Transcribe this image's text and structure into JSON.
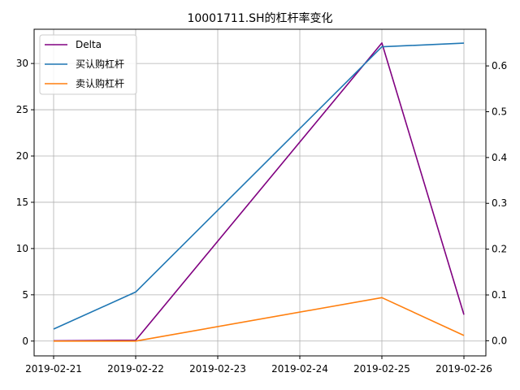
{
  "chart_data": {
    "type": "line",
    "title": "10001711.SH的杠杆率变化",
    "x": [
      "2019-02-21",
      "2019-02-22",
      "2019-02-23",
      "2019-02-24",
      "2019-02-25",
      "2019-02-26"
    ],
    "xlabel": "",
    "ylabel_left": "",
    "ylabel_right": "",
    "ylim_left": [
      -1.6,
      33.7
    ],
    "yticks_left": [
      0,
      5,
      10,
      15,
      20,
      25,
      30
    ],
    "ylim_right": [
      -0.033,
      0.68
    ],
    "yticks_right": [
      0.0,
      0.1,
      0.2,
      0.3,
      0.4,
      0.5,
      0.6
    ],
    "grid": true,
    "legend_position": "top-left",
    "series": [
      {
        "name": "Delta",
        "axis": "right",
        "color": "#800080",
        "points": [
          {
            "x": "2019-02-21",
            "y": 0.0
          },
          {
            "x": "2019-02-22",
            "y": 0.001
          },
          {
            "x": "2019-02-25",
            "y": 0.65
          },
          {
            "x": "2019-02-26",
            "y": 0.057
          }
        ]
      },
      {
        "name": "买认购杠杆",
        "axis": "left",
        "color": "#1f77b4",
        "points": [
          {
            "x": "2019-02-21",
            "y": 1.3
          },
          {
            "x": "2019-02-22",
            "y": 5.3
          },
          {
            "x": "2019-02-25",
            "y": 31.8
          },
          {
            "x": "2019-02-26",
            "y": 32.2
          }
        ]
      },
      {
        "name": "卖认购杠杆",
        "axis": "left",
        "color": "#ff7f0e",
        "points": [
          {
            "x": "2019-02-21",
            "y": 0.0
          },
          {
            "x": "2019-02-22",
            "y": 0.0
          },
          {
            "x": "2019-02-25",
            "y": 4.7
          },
          {
            "x": "2019-02-26",
            "y": 0.6
          }
        ]
      }
    ]
  }
}
